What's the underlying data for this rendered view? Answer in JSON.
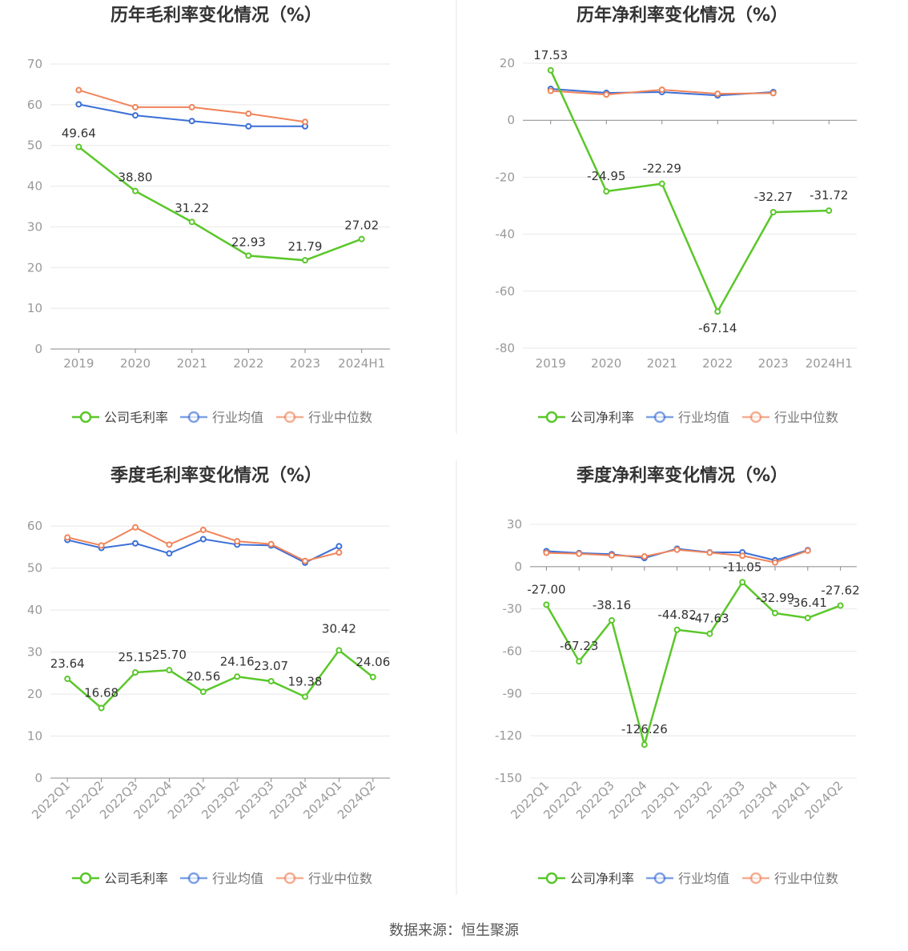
{
  "source": "数据来源：恒生聚源",
  "colors": {
    "company": "#5ac72a",
    "avg": "#3a6fd8",
    "median": "#f0845a"
  },
  "chart_data": [
    {
      "type": "line",
      "title": "历年毛利率变化情况（%）",
      "categories": [
        "2019",
        "2020",
        "2021",
        "2022",
        "2023",
        "2024H1"
      ],
      "ylim": [
        0,
        70
      ],
      "yticks": [
        0,
        10,
        20,
        30,
        40,
        50,
        60,
        70
      ],
      "legend": [
        "公司毛利率",
        "行业均值",
        "行业中位数"
      ],
      "series": [
        {
          "name": "公司毛利率",
          "values": [
            49.64,
            38.8,
            31.22,
            22.93,
            21.79,
            27.02
          ],
          "labels": [
            "49.64",
            "38.80",
            "31.22",
            "22.93",
            "21.79",
            "27.02"
          ]
        },
        {
          "name": "行业均值",
          "values": [
            60.1,
            57.4,
            56.0,
            54.7,
            54.7,
            null
          ]
        },
        {
          "name": "行业中位数",
          "values": [
            63.6,
            59.4,
            59.4,
            57.8,
            55.8,
            null
          ]
        }
      ]
    },
    {
      "type": "line",
      "title": "历年净利率变化情况（%）",
      "categories": [
        "2019",
        "2020",
        "2021",
        "2022",
        "2023",
        "2024H1"
      ],
      "ylim": [
        -80,
        20
      ],
      "yticks": [
        -80,
        -60,
        -40,
        -20,
        0,
        20
      ],
      "legend": [
        "公司净利率",
        "行业均值",
        "行业中位数"
      ],
      "series": [
        {
          "name": "公司净利率",
          "values": [
            17.53,
            -24.95,
            -22.29,
            -67.14,
            -32.27,
            -31.72
          ],
          "labels": [
            "17.53",
            "-24.95",
            "-22.29",
            "-67.14",
            "-32.27",
            "-31.72"
          ]
        },
        {
          "name": "行业均值",
          "values": [
            11.0,
            9.6,
            9.9,
            8.7,
            9.9,
            null
          ]
        },
        {
          "name": "行业中位数",
          "values": [
            10.3,
            9.0,
            10.7,
            9.3,
            9.5,
            null
          ]
        }
      ]
    },
    {
      "type": "line",
      "title": "季度毛利率变化情况（%）",
      "categories": [
        "2022Q1",
        "2022Q2",
        "2022Q3",
        "2022Q4",
        "2023Q1",
        "2023Q2",
        "2023Q3",
        "2023Q4",
        "2024Q1",
        "2024Q2"
      ],
      "ylim": [
        0,
        65
      ],
      "yticks": [
        0,
        10,
        20,
        30,
        40,
        50,
        60
      ],
      "legend": [
        "公司毛利率",
        "行业均值",
        "行业中位数"
      ],
      "series": [
        {
          "name": "公司毛利率",
          "values": [
            23.64,
            16.68,
            25.15,
            25.7,
            20.56,
            24.16,
            23.07,
            19.38,
            30.42,
            24.06
          ],
          "labels": [
            "23.64",
            "16.68",
            "25.15",
            "25.70",
            "20.56",
            "24.16",
            "23.07",
            "19.38",
            "30.42",
            "24.06"
          ]
        },
        {
          "name": "行业均值",
          "values": [
            56.7,
            54.8,
            55.9,
            53.5,
            56.9,
            55.6,
            55.4,
            51.3,
            55.2,
            null
          ]
        },
        {
          "name": "行业中位数",
          "values": [
            57.3,
            55.4,
            59.7,
            55.6,
            59.1,
            56.4,
            55.7,
            51.7,
            53.7,
            null
          ]
        }
      ]
    },
    {
      "type": "line",
      "title": "季度净利率变化情况（%）",
      "categories": [
        "2022Q1",
        "2022Q2",
        "2022Q3",
        "2022Q4",
        "2023Q1",
        "2023Q2",
        "2023Q3",
        "2023Q4",
        "2024Q1",
        "2024Q2"
      ],
      "ylim": [
        -150,
        30
      ],
      "yticks": [
        -150,
        -120,
        -90,
        -60,
        -30,
        0,
        30
      ],
      "legend": [
        "公司净利率",
        "行业均值",
        "行业中位数"
      ],
      "series": [
        {
          "name": "公司净利率",
          "values": [
            -27.0,
            -67.23,
            -38.16,
            -126.26,
            -44.82,
            -47.63,
            -11.05,
            -32.99,
            -36.41,
            -27.62
          ],
          "labels": [
            "-27.00",
            "-67.23",
            "-38.16",
            "-126.26",
            "-44.82",
            "-47.63",
            "-11.05",
            "-32.99",
            "-36.41",
            "-27.62"
          ]
        },
        {
          "name": "行业均值",
          "values": [
            11.0,
            9.6,
            8.8,
            6.1,
            12.7,
            10.1,
            10.1,
            4.5,
            11.7,
            null
          ]
        },
        {
          "name": "行业中位数",
          "values": [
            9.8,
            9.1,
            8.0,
            7.2,
            12.0,
            9.9,
            7.7,
            2.9,
            11.3,
            null
          ]
        }
      ]
    }
  ]
}
